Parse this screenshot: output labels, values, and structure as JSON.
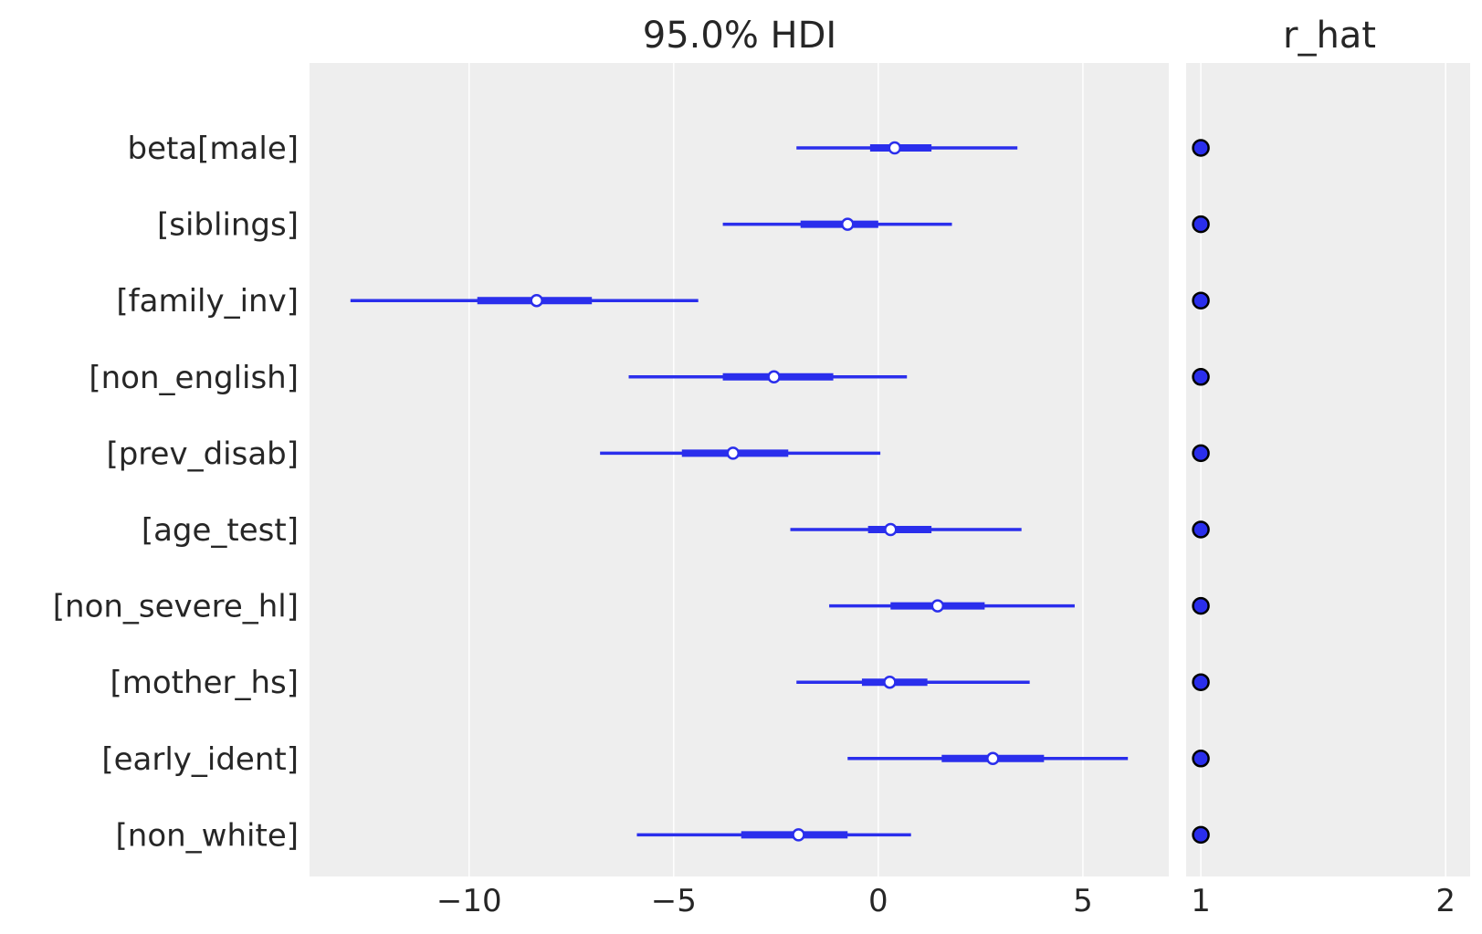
{
  "chart_data": [
    {
      "type": "forest",
      "title": "95.0% HDI",
      "labels": [
        "beta[male]",
        "[siblings]",
        "[family_inv]",
        "[non_english]",
        "[prev_disab]",
        "[age_test]",
        "[non_severe_hl]",
        "[mother_hs]",
        "[early_ident]",
        "[non_white]"
      ],
      "xlim": [
        -13.9,
        7.1
      ],
      "xticks": [
        -10,
        -5,
        0,
        5
      ],
      "xtick_labels": [
        "−10",
        "−5",
        "0",
        "5"
      ],
      "grid": true,
      "color": "#2a2eec",
      "series": [
        {
          "label": "beta[male]",
          "hdi_95": [
            -2.0,
            3.4
          ],
          "iqr": [
            -0.2,
            1.3
          ],
          "median": 0.4
        },
        {
          "label": "[siblings]",
          "hdi_95": [
            -3.8,
            1.8
          ],
          "iqr": [
            -1.9,
            0.0
          ],
          "median": -0.75
        },
        {
          "label": "[family_inv]",
          "hdi_95": [
            -12.9,
            -4.4
          ],
          "iqr": [
            -9.8,
            -7.0
          ],
          "median": -8.35
        },
        {
          "label": "[non_english]",
          "hdi_95": [
            -6.1,
            0.7
          ],
          "iqr": [
            -3.8,
            -1.1
          ],
          "median": -2.55
        },
        {
          "label": "[prev_disab]",
          "hdi_95": [
            -6.8,
            0.05
          ],
          "iqr": [
            -4.8,
            -2.2
          ],
          "median": -3.55
        },
        {
          "label": "[age_test]",
          "hdi_95": [
            -2.15,
            3.5
          ],
          "iqr": [
            -0.25,
            1.3
          ],
          "median": 0.3
        },
        {
          "label": "[non_severe_hl]",
          "hdi_95": [
            -1.2,
            4.8
          ],
          "iqr": [
            0.3,
            2.6
          ],
          "median": 1.45
        },
        {
          "label": "[mother_hs]",
          "hdi_95": [
            -2.0,
            3.7
          ],
          "iqr": [
            -0.4,
            1.2
          ],
          "median": 0.28
        },
        {
          "label": "[early_ident]",
          "hdi_95": [
            -0.75,
            6.1
          ],
          "iqr": [
            1.55,
            4.05
          ],
          "median": 2.8
        },
        {
          "label": "[non_white]",
          "hdi_95": [
            -5.9,
            0.8
          ],
          "iqr": [
            -3.35,
            -0.75
          ],
          "median": -1.95
        }
      ]
    },
    {
      "type": "scatter",
      "title": "r_hat",
      "xlim": [
        0.94,
        2.1
      ],
      "xticks": [
        1,
        2
      ],
      "xtick_labels": [
        "1",
        "2"
      ],
      "grid": true,
      "color": "#2a2eec",
      "values": [
        1.0,
        1.0,
        1.0,
        1.0,
        1.0,
        1.0,
        1.0,
        1.0,
        1.0,
        1.0
      ]
    }
  ]
}
